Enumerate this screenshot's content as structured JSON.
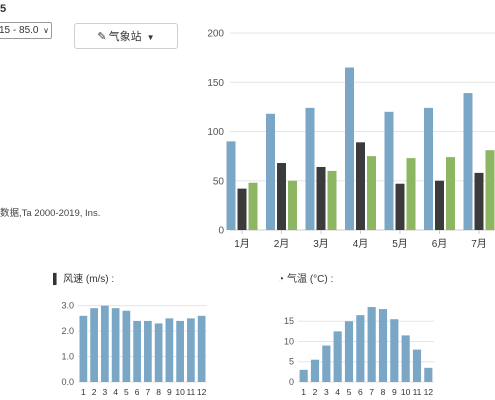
{
  "header": {
    "number": "5"
  },
  "range_select": {
    "value": "15 - 85.0",
    "icon": "chevron-down-icon"
  },
  "station_button": {
    "label": "气象站",
    "icon": "edit-icon",
    "caret": "caret-down-icon"
  },
  "source_note": "数据,Ta 2000-2019, Ins.",
  "wind_title": {
    "label": "风速 (m/s) :",
    "icon": "signal-bars-icon"
  },
  "temp_title": {
    "label": "气温 (°C) :",
    "icon": "gauge-icon"
  },
  "colors": {
    "blue": "#7ba7c7",
    "dark": "#3b3b3b",
    "green": "#8db562",
    "grid": "#e6e6e6"
  },
  "chart_data": [
    {
      "type": "bar",
      "categories": [
        "1月",
        "2月",
        "3月",
        "4月",
        "5月",
        "6月",
        "7月"
      ],
      "series": [
        {
          "values": [
            90,
            118,
            124,
            165,
            120,
            124,
            139
          ],
          "color": "#7ba7c7"
        },
        {
          "values": [
            42,
            68,
            64,
            89,
            47,
            50,
            58
          ],
          "color": "#3b3b3b"
        },
        {
          "values": [
            48,
            50,
            60,
            75,
            73,
            74,
            81
          ],
          "color": "#8db562"
        }
      ],
      "yticks": [
        0,
        50,
        100,
        150,
        200
      ],
      "ylim": [
        0,
        200
      ],
      "grid": true
    },
    {
      "type": "bar",
      "title": "风速 (m/s) :",
      "categories": [
        "1",
        "2",
        "3",
        "4",
        "5",
        "6",
        "7",
        "8",
        "9",
        "10",
        "11",
        "12"
      ],
      "values": [
        2.6,
        2.9,
        3.0,
        2.9,
        2.8,
        2.4,
        2.4,
        2.3,
        2.5,
        2.4,
        2.5,
        2.6
      ],
      "yticks": [
        "0.0",
        "1.0",
        "2.0",
        "3.0"
      ],
      "ylim": [
        0,
        3.3
      ],
      "color": "#7ba7c7",
      "grid": true
    },
    {
      "type": "bar",
      "title": "气温 (°C) :",
      "categories": [
        "1",
        "2",
        "3",
        "4",
        "5",
        "6",
        "7",
        "8",
        "9",
        "10",
        "11",
        "12"
      ],
      "values": [
        3,
        5.5,
        9,
        12.5,
        15,
        16.5,
        18.5,
        18,
        15.5,
        11.5,
        8,
        3.5
      ],
      "yticks": [
        "0",
        "5",
        "10",
        "15"
      ],
      "ylim": [
        0,
        19.5
      ],
      "color": "#7ba7c7",
      "grid": true
    }
  ]
}
